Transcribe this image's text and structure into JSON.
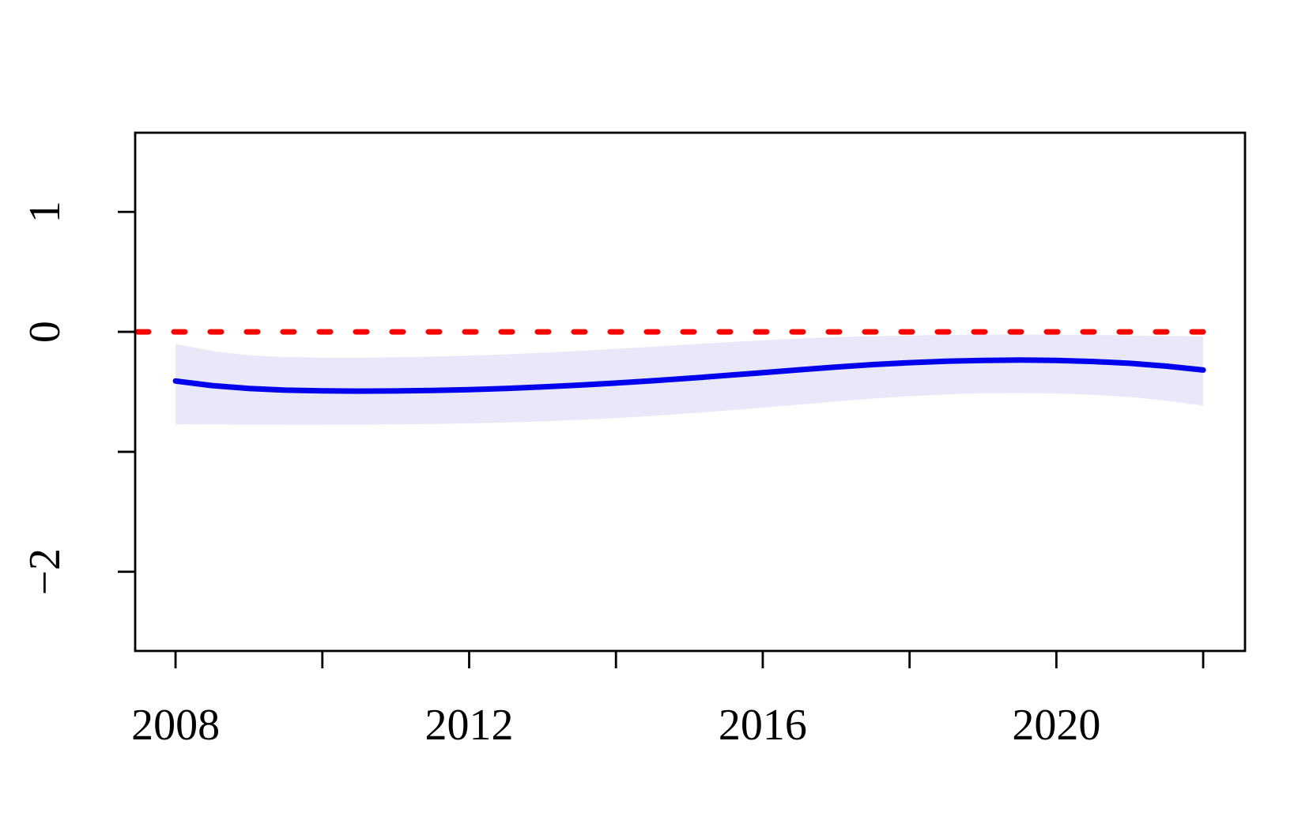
{
  "chart_data": {
    "type": "line",
    "title": "",
    "xlabel": "",
    "ylabel": "",
    "grid": false,
    "legend": null,
    "background": "#FFFFFF",
    "frame_color": "#000000",
    "x_axis": {
      "ticks": [
        2008,
        2010,
        2012,
        2014,
        2016,
        2018,
        2020,
        2022
      ],
      "tick_labels": [
        "2008",
        "",
        "2012",
        "",
        "2016",
        "",
        "2020",
        ""
      ],
      "range_years": [
        2007.45,
        2022.57
      ]
    },
    "y_axis": {
      "ticks": [
        1,
        0,
        -1,
        -2
      ],
      "tick_labels": [
        "1",
        "0",
        "",
        "−2"
      ],
      "range": [
        -2.66,
        1.66
      ]
    },
    "x": [
      2008,
      2008.5,
      2009,
      2009.5,
      2010,
      2010.5,
      2011,
      2011.5,
      2012,
      2012.5,
      2013,
      2013.5,
      2014,
      2014.5,
      2015,
      2015.5,
      2016,
      2016.5,
      2017,
      2017.5,
      2018,
      2018.5,
      2019,
      2019.5,
      2020,
      2020.5,
      2021,
      2021.5,
      2022
    ],
    "series": [
      {
        "name": "smooth-fit",
        "color": "#0000EE",
        "values": [
          -0.41,
          -0.448,
          -0.472,
          -0.486,
          -0.492,
          -0.494,
          -0.493,
          -0.489,
          -0.482,
          -0.472,
          -0.459,
          -0.444,
          -0.427,
          -0.408,
          -0.387,
          -0.364,
          -0.34,
          -0.316,
          -0.293,
          -0.273,
          -0.257,
          -0.245,
          -0.238,
          -0.235,
          -0.238,
          -0.247,
          -0.262,
          -0.286,
          -0.318
        ]
      }
    ],
    "band": {
      "name": "confidence-band",
      "color": "#E8E8F8",
      "upper": [
        -0.1,
        -0.16,
        -0.195,
        -0.21,
        -0.215,
        -0.215,
        -0.212,
        -0.206,
        -0.198,
        -0.187,
        -0.174,
        -0.159,
        -0.142,
        -0.124,
        -0.105,
        -0.087,
        -0.07,
        -0.056,
        -0.044,
        -0.036,
        -0.03,
        -0.026,
        -0.023,
        -0.022,
        -0.023,
        -0.026,
        -0.03,
        -0.034,
        -0.036
      ],
      "lower": [
        -0.77,
        -0.772,
        -0.773,
        -0.774,
        -0.774,
        -0.773,
        -0.771,
        -0.768,
        -0.763,
        -0.756,
        -0.746,
        -0.734,
        -0.719,
        -0.701,
        -0.68,
        -0.657,
        -0.632,
        -0.606,
        -0.58,
        -0.556,
        -0.536,
        -0.521,
        -0.512,
        -0.51,
        -0.514,
        -0.525,
        -0.543,
        -0.573,
        -0.615
      ]
    },
    "reference_line": {
      "value": 0,
      "color": "#FF0000",
      "style": "dashed"
    }
  }
}
